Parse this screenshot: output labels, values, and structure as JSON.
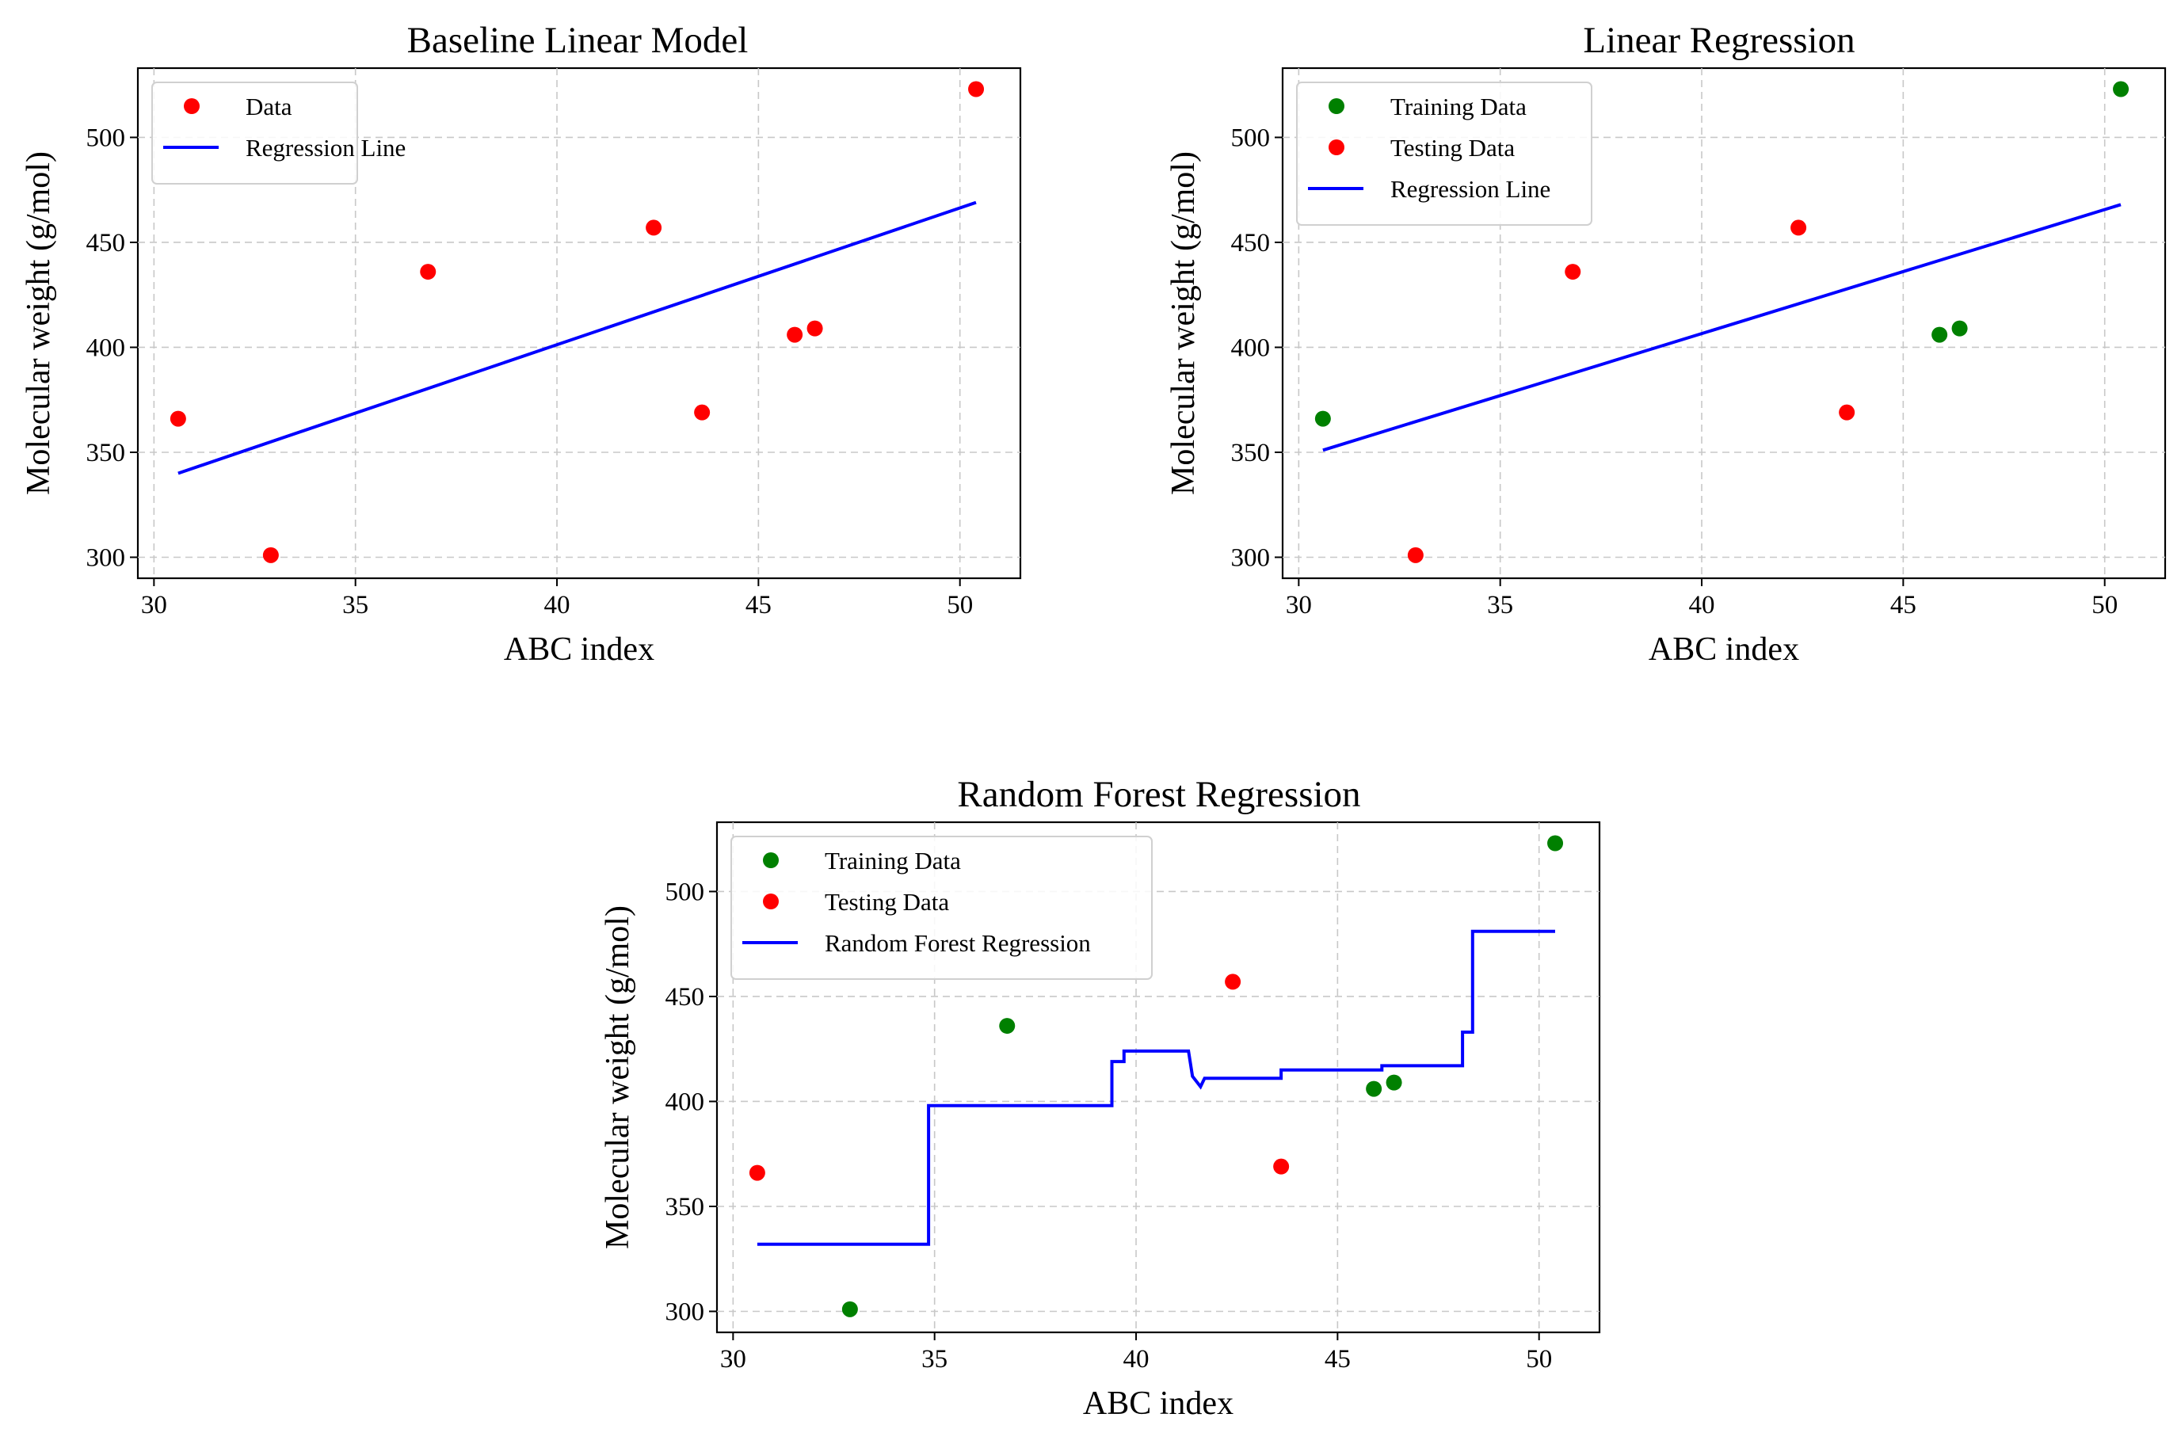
{
  "chart_data": [
    {
      "type": "scatter",
      "title": "Baseline Linear Model",
      "xlabel": "ABC index",
      "ylabel": "Molecular weight (g/mol)",
      "xlim": [
        29.6,
        51.5
      ],
      "ylim": [
        290,
        533
      ],
      "xticks": [
        30,
        35,
        40,
        45,
        50
      ],
      "yticks": [
        300,
        350,
        400,
        450,
        500
      ],
      "grid": true,
      "legend": "top-left",
      "series": [
        {
          "name": "Data",
          "kind": "scatter",
          "color": "#ff0000",
          "x": [
            30.6,
            32.9,
            36.8,
            42.4,
            43.6,
            45.9,
            46.4,
            50.4
          ],
          "y": [
            366,
            301,
            436,
            457,
            369,
            406,
            409,
            523
          ]
        },
        {
          "name": "Regression Line",
          "kind": "line",
          "color": "#0000ff",
          "x": [
            30.6,
            50.4
          ],
          "y": [
            340,
            469
          ]
        }
      ]
    },
    {
      "type": "scatter",
      "title": "Linear Regression",
      "xlabel": "ABC index",
      "ylabel": "Molecular weight (g/mol)",
      "xlim": [
        29.6,
        51.5
      ],
      "ylim": [
        290,
        533
      ],
      "xticks": [
        30,
        35,
        40,
        45,
        50
      ],
      "yticks": [
        300,
        350,
        400,
        450,
        500
      ],
      "grid": true,
      "legend": "top-left",
      "series": [
        {
          "name": "Training Data",
          "kind": "scatter",
          "color": "#008000",
          "x": [
            30.6,
            45.9,
            46.4,
            50.4
          ],
          "y": [
            366,
            406,
            409,
            523
          ]
        },
        {
          "name": "Testing Data",
          "kind": "scatter",
          "color": "#ff0000",
          "x": [
            32.9,
            36.8,
            42.4,
            43.6
          ],
          "y": [
            301,
            436,
            457,
            369
          ]
        },
        {
          "name": "Regression Line",
          "kind": "line",
          "color": "#0000ff",
          "x": [
            30.6,
            50.4
          ],
          "y": [
            351,
            468
          ]
        }
      ]
    },
    {
      "type": "scatter",
      "title": "Random Forest Regression",
      "xlabel": "ABC index",
      "ylabel": "Molecular weight (g/mol)",
      "xlim": [
        29.6,
        51.5
      ],
      "ylim": [
        290,
        533
      ],
      "xticks": [
        30,
        35,
        40,
        45,
        50
      ],
      "yticks": [
        300,
        350,
        400,
        450,
        500
      ],
      "grid": true,
      "legend": "top-left",
      "series": [
        {
          "name": "Training Data",
          "kind": "scatter",
          "color": "#008000",
          "x": [
            32.9,
            36.8,
            45.9,
            46.4,
            50.4
          ],
          "y": [
            301,
            436,
            406,
            409,
            523
          ]
        },
        {
          "name": "Testing Data",
          "kind": "scatter",
          "color": "#ff0000",
          "x": [
            30.6,
            42.4,
            43.6
          ],
          "y": [
            366,
            457,
            369
          ]
        },
        {
          "name": "Random Forest Regression",
          "kind": "line",
          "color": "#0000ff",
          "x": [
            30.6,
            34.85,
            34.85,
            39.4,
            39.4,
            39.7,
            39.7,
            41.3,
            41.4,
            41.6,
            41.7,
            43.6,
            43.6,
            46.1,
            46.1,
            48.1,
            48.1,
            48.35,
            48.35,
            50.4
          ],
          "y": [
            332,
            332,
            398,
            398,
            419,
            419,
            424,
            424,
            412,
            407,
            411,
            411,
            415,
            415,
            417,
            417,
            433,
            433,
            481,
            481
          ]
        }
      ]
    }
  ]
}
